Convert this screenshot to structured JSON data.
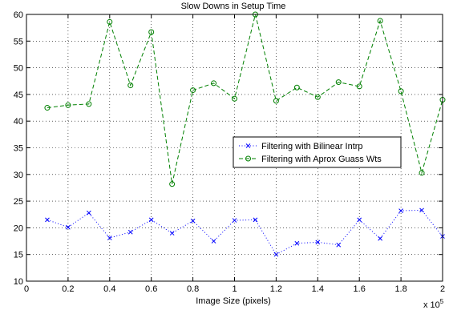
{
  "chart_data": {
    "type": "line",
    "title": "Slow Downs in Setup Time",
    "xlabel": "Image Size (pixels)",
    "ylabel": "",
    "x_exponent_label": "x 10",
    "x_exponent_power": "5",
    "xlim": [
      0,
      2
    ],
    "ylim": [
      10,
      60
    ],
    "x_ticks": [
      0,
      0.2,
      0.4,
      0.6,
      0.8,
      1,
      1.2,
      1.4,
      1.6,
      1.8,
      2
    ],
    "x_tick_labels": [
      "0",
      "0.2",
      "0.4",
      "0.6",
      "0.8",
      "1",
      "1.2",
      "1.4",
      "1.6",
      "1.8",
      "2"
    ],
    "y_ticks": [
      10,
      15,
      20,
      25,
      30,
      35,
      40,
      45,
      50,
      55,
      60
    ],
    "y_tick_labels": [
      "10",
      "15",
      "20",
      "25",
      "30",
      "35",
      "40",
      "45",
      "50",
      "55",
      "60"
    ],
    "grid": true,
    "legend_position": "center-right",
    "x": [
      0.1,
      0.2,
      0.3,
      0.4,
      0.5,
      0.6,
      0.7,
      0.8,
      0.9,
      1.0,
      1.1,
      1.2,
      1.3,
      1.4,
      1.5,
      1.6,
      1.7,
      1.8,
      1.9,
      2.0
    ],
    "series": [
      {
        "name": "Filtering with Bilinear Intrp",
        "color": "#0000ff",
        "marker": "x",
        "line_style": "dotted",
        "values": [
          21.5,
          20.1,
          22.8,
          18.1,
          19.2,
          21.5,
          19.0,
          21.3,
          17.5,
          21.4,
          21.5,
          15.0,
          17.1,
          17.3,
          16.8,
          21.5,
          18.0,
          23.2,
          23.3,
          18.4
        ]
      },
      {
        "name": "Filtering with Aprox Guass Wts",
        "color": "#008000",
        "marker": "o",
        "line_style": "dashed",
        "values": [
          42.5,
          43.0,
          43.2,
          58.6,
          46.7,
          56.7,
          28.2,
          45.8,
          47.1,
          44.2,
          60.0,
          43.8,
          46.3,
          44.5,
          47.3,
          46.5,
          58.8,
          45.6,
          30.3,
          44.0
        ]
      }
    ]
  }
}
